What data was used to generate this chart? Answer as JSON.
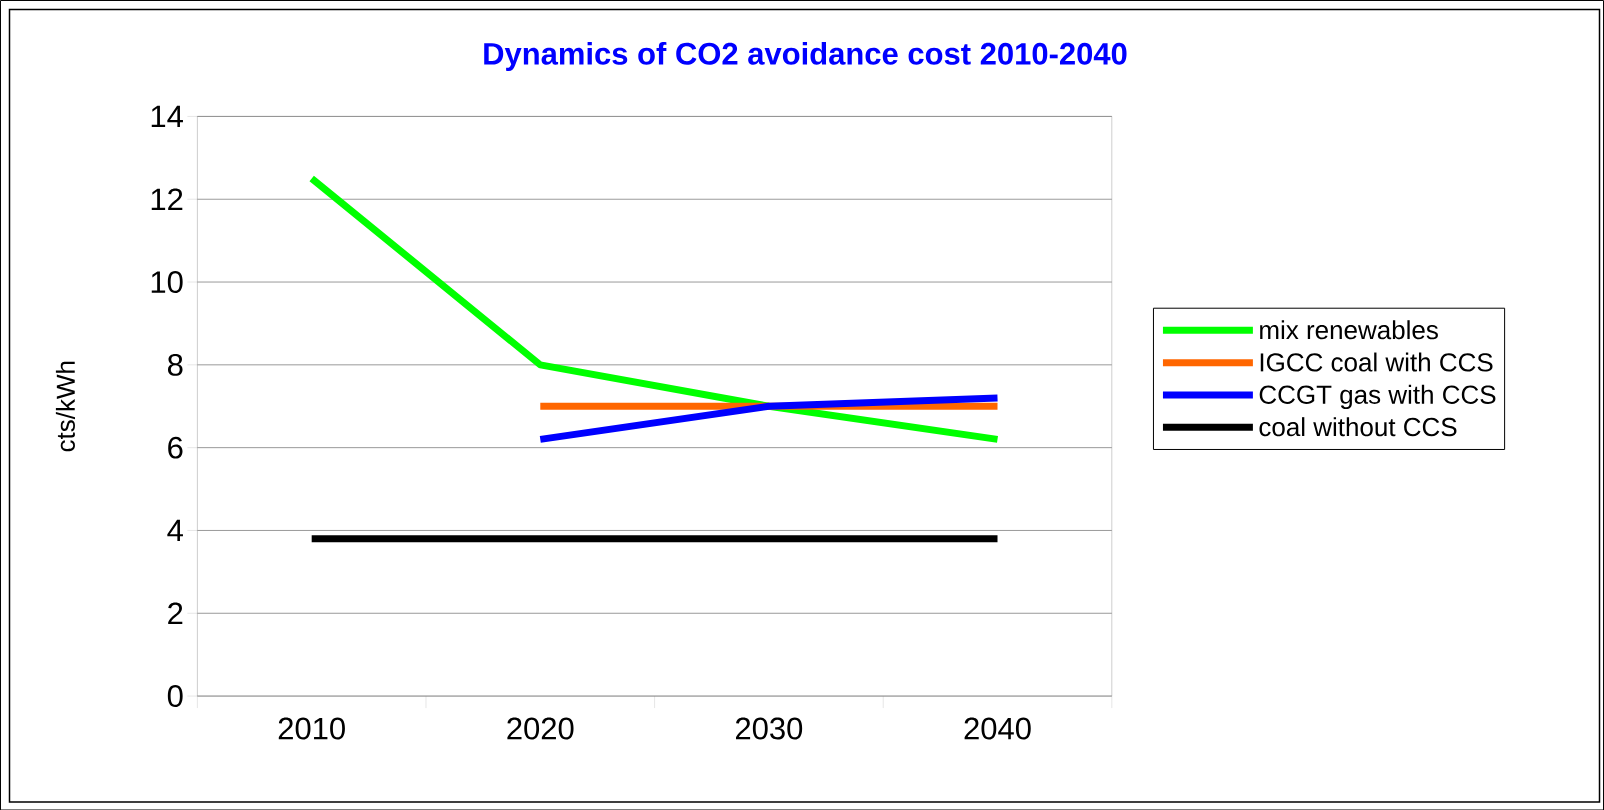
{
  "chart_data": {
    "type": "line",
    "title": "Dynamics of CO2 avoidance cost 2010-2040",
    "ylabel": "cts/kWh",
    "categories": [
      "2010",
      "2020",
      "2030",
      "2040"
    ],
    "series": [
      {
        "name": "mix renewables",
        "color": "#00ff00",
        "values": [
          12.5,
          8,
          7,
          6.2
        ]
      },
      {
        "name": "IGCC coal with CCS",
        "color": "#ff6600",
        "values": [
          null,
          7,
          7,
          7
        ]
      },
      {
        "name": "CCGT gas with CCS",
        "color": "#0000ff",
        "values": [
          null,
          6.2,
          7,
          7.2
        ]
      },
      {
        "name": "coal without CCS",
        "color": "#000000",
        "values": [
          3.8,
          3.8,
          3.8,
          3.8
        ]
      }
    ],
    "ylim": [
      0,
      14
    ],
    "yticks": [
      0,
      2,
      4,
      6,
      8,
      10,
      12,
      14
    ],
    "grid": "y",
    "legend": "right",
    "line_style": "solid"
  }
}
